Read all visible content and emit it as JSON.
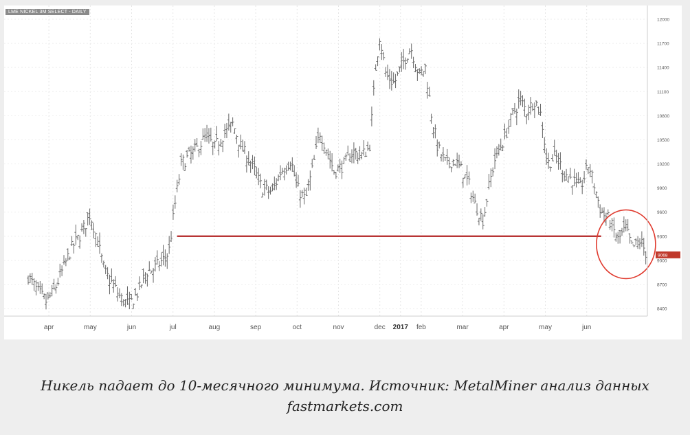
{
  "chart_data": {
    "type": "ohlc",
    "title": "LME NICKEL 3M SELECT - DAILY",
    "current_price_label": "9068",
    "ylim": [
      8250,
      12150
    ],
    "yticks": [
      "8400",
      "8700",
      "9000",
      "9300",
      "9600",
      "9900",
      "10200",
      "10500",
      "10800",
      "11100",
      "11400",
      "11700",
      "12000"
    ],
    "xticks": [
      {
        "label": "apr",
        "month": 0.5
      },
      {
        "label": "may",
        "month": 1.5
      },
      {
        "label": "jun",
        "month": 2.5
      },
      {
        "label": "jul",
        "month": 3.5
      },
      {
        "label": "aug",
        "month": 4.5
      },
      {
        "label": "sep",
        "month": 5.5
      },
      {
        "label": "oct",
        "month": 6.5
      },
      {
        "label": "nov",
        "month": 7.5
      },
      {
        "label": "dec",
        "month": 8.5
      },
      {
        "label": "2017",
        "month": 9.0
      },
      {
        "label": "feb",
        "month": 9.5
      },
      {
        "label": "mar",
        "month": 10.5
      },
      {
        "label": "apr",
        "month": 11.5
      },
      {
        "label": "may",
        "month": 12.5
      },
      {
        "label": "jun",
        "month": 13.5
      }
    ],
    "series": [
      {
        "points": [
          [
            0.0,
            8800
          ],
          [
            0.25,
            8600
          ],
          [
            0.45,
            8480
          ],
          [
            0.65,
            8650
          ],
          [
            0.85,
            8900
          ],
          [
            1.05,
            9150
          ],
          [
            1.3,
            9350
          ],
          [
            1.5,
            9580
          ],
          [
            1.65,
            9300
          ],
          [
            1.85,
            8850
          ],
          [
            2.05,
            8700
          ],
          [
            2.25,
            8520
          ],
          [
            2.45,
            8450
          ],
          [
            2.65,
            8600
          ],
          [
            2.85,
            8850
          ],
          [
            3.05,
            8900
          ],
          [
            3.25,
            9000
          ],
          [
            3.4,
            9100
          ],
          [
            3.55,
            9700
          ],
          [
            3.7,
            10200
          ],
          [
            3.9,
            10300
          ],
          [
            4.1,
            10400
          ],
          [
            4.3,
            10550
          ],
          [
            4.5,
            10400
          ],
          [
            4.7,
            10550
          ],
          [
            4.95,
            10700
          ],
          [
            5.15,
            10400
          ],
          [
            5.4,
            10200
          ],
          [
            5.65,
            9900
          ],
          [
            5.9,
            9850
          ],
          [
            6.1,
            10100
          ],
          [
            6.35,
            10250
          ],
          [
            6.5,
            9900
          ],
          [
            6.7,
            9750
          ],
          [
            6.9,
            10200
          ],
          [
            7.05,
            10600
          ],
          [
            7.2,
            10400
          ],
          [
            7.4,
            10100
          ],
          [
            7.65,
            10200
          ],
          [
            7.85,
            10350
          ],
          [
            8.05,
            10300
          ],
          [
            8.25,
            10400
          ],
          [
            8.4,
            11400
          ],
          [
            8.5,
            11800
          ],
          [
            8.65,
            11300
          ],
          [
            8.85,
            11200
          ],
          [
            9.05,
            11450
          ],
          [
            9.25,
            11650
          ],
          [
            9.45,
            11300
          ],
          [
            9.6,
            11400
          ],
          [
            9.75,
            10800
          ],
          [
            9.9,
            10400
          ],
          [
            10.1,
            10200
          ],
          [
            10.3,
            10250
          ],
          [
            10.5,
            10100
          ],
          [
            10.65,
            9950
          ],
          [
            10.8,
            9700
          ],
          [
            11.0,
            9500
          ],
          [
            11.15,
            9950
          ],
          [
            11.3,
            10300
          ],
          [
            11.5,
            10500
          ],
          [
            11.7,
            10800
          ],
          [
            11.9,
            11000
          ],
          [
            12.05,
            10850
          ],
          [
            12.25,
            11000
          ],
          [
            12.4,
            10800
          ],
          [
            12.55,
            10200
          ],
          [
            12.75,
            10300
          ],
          [
            12.95,
            10100
          ],
          [
            13.15,
            10000
          ],
          [
            13.35,
            9900
          ],
          [
            13.55,
            10200
          ],
          [
            13.7,
            9900
          ],
          [
            13.85,
            9600
          ],
          [
            14.05,
            9500
          ],
          [
            14.25,
            9250
          ],
          [
            14.45,
            9400
          ],
          [
            14.6,
            9150
          ],
          [
            14.8,
            9250
          ],
          [
            14.95,
            9068
          ]
        ]
      }
    ],
    "support_level": 9300,
    "support_from_month": 3.6,
    "support_to_month": 13.85,
    "highlight": {
      "month": 14.45,
      "price": 9200
    }
  },
  "caption": "Никель падает до 10-месячного минимума. Источник: MetalMiner анализ данных fastmarkets.com",
  "colors": {
    "bars": "#666666",
    "support_line": "#b22222",
    "circle": "#e03a2e",
    "price_label_bg": "#c0392b",
    "title_bg": "#8a8a8a"
  }
}
